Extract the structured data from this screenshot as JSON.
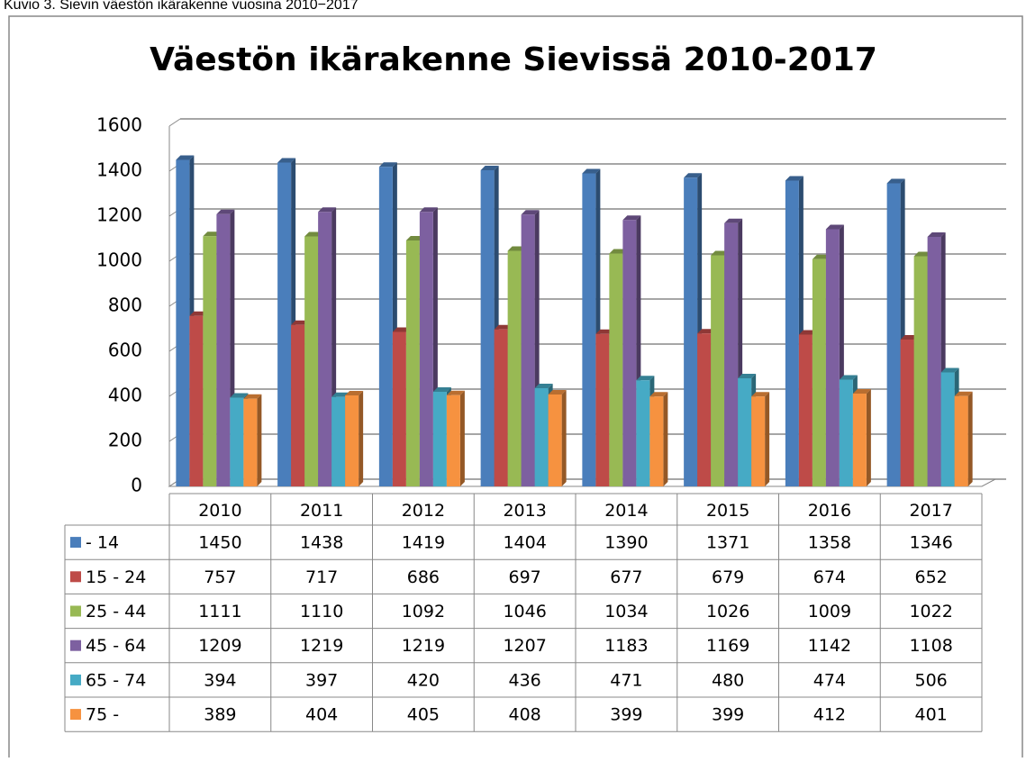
{
  "caption": "Kuvio 3. Sievin väestön ikärakenne vuosina 2010−2017",
  "chart_data": {
    "type": "bar",
    "title": "Väestön ikärakenne Sievissä 2010-2017",
    "categories": [
      "2010",
      "2011",
      "2012",
      "2013",
      "2014",
      "2015",
      "2016",
      "2017"
    ],
    "series": [
      {
        "name": "- 14",
        "color": "#4a7ebb",
        "values": [
          1450,
          1438,
          1419,
          1404,
          1390,
          1371,
          1358,
          1346
        ]
      },
      {
        "name": "15 - 24",
        "color": "#be4b48",
        "values": [
          757,
          717,
          686,
          697,
          677,
          679,
          674,
          652
        ]
      },
      {
        "name": "25 - 44",
        "color": "#98b954",
        "values": [
          1111,
          1110,
          1092,
          1046,
          1034,
          1026,
          1009,
          1022
        ]
      },
      {
        "name": "45 - 64",
        "color": "#7d60a0",
        "values": [
          1209,
          1219,
          1219,
          1207,
          1183,
          1169,
          1142,
          1108
        ]
      },
      {
        "name": "65 - 74",
        "color": "#46aac5",
        "values": [
          394,
          397,
          420,
          436,
          471,
          480,
          474,
          506
        ]
      },
      {
        "name": "75 -",
        "color": "#f69240",
        "values": [
          389,
          404,
          405,
          408,
          399,
          399,
          412,
          401
        ]
      }
    ],
    "ylim": [
      0,
      1600
    ],
    "yticks": [
      0,
      200,
      400,
      600,
      800,
      1000,
      1200,
      1400,
      1600
    ],
    "grid": true,
    "data_table": true
  }
}
